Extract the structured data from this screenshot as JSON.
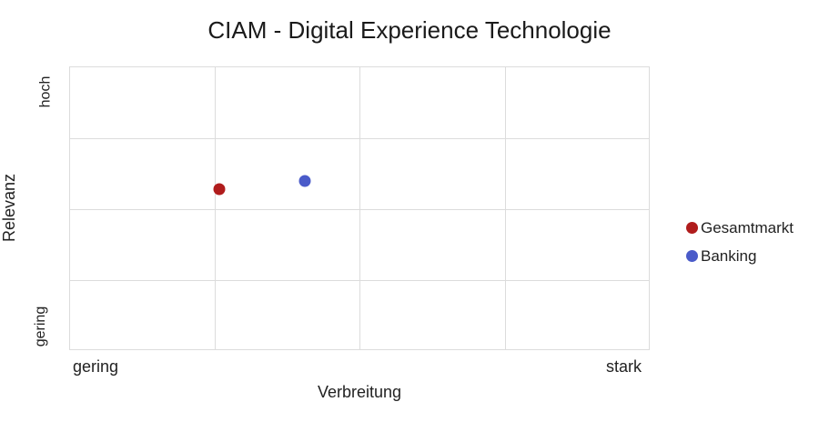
{
  "chart_data": {
    "type": "scatter",
    "title": "CIAM - Digital Experience Technologie",
    "xlabel": "Verbreitung",
    "ylabel": "Relevanz",
    "x_tick_labels": [
      "gering",
      "stark"
    ],
    "y_tick_labels": [
      "gering",
      "hoch"
    ],
    "xlim": [
      0,
      4
    ],
    "ylim": [
      0,
      4
    ],
    "grid": true,
    "grid_divisions": {
      "x": 4,
      "y": 4
    },
    "legend_position": "right",
    "series": [
      {
        "name": "Gesamtmarkt",
        "color": "#b01c1c",
        "points": [
          {
            "x": 1.03,
            "y": 2.28
          }
        ]
      },
      {
        "name": "Banking",
        "color": "#4a5bc9",
        "points": [
          {
            "x": 1.62,
            "y": 2.4
          }
        ]
      }
    ]
  },
  "legend": {
    "items": [
      {
        "label": "Gesamtmarkt",
        "color": "#b01c1c"
      },
      {
        "label": "Banking",
        "color": "#4a5bc9"
      }
    ]
  }
}
